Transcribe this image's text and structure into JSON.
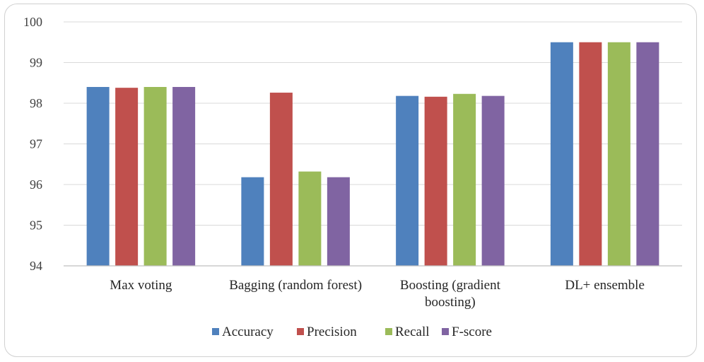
{
  "chart_data": {
    "type": "bar",
    "categories": [
      [
        "Max voting"
      ],
      [
        "Bagging (random forest)"
      ],
      [
        "Boosting (gradient",
        "boosting)"
      ],
      [
        "DL+ ensemble"
      ]
    ],
    "series": [
      {
        "name": "Accuracy",
        "color": "#4f81bd",
        "values": [
          98.4,
          96.18,
          98.18,
          99.5
        ]
      },
      {
        "name": "Precision",
        "color": "#c0504d",
        "values": [
          98.38,
          98.26,
          98.16,
          99.5
        ]
      },
      {
        "name": "Recall",
        "color": "#9bbb59",
        "values": [
          98.4,
          96.32,
          98.23,
          99.5
        ]
      },
      {
        "name": "F-score",
        "color": "#8064a2",
        "values": [
          98.4,
          96.18,
          98.18,
          99.5
        ]
      }
    ],
    "ylim": [
      94,
      100
    ],
    "yticks": [
      94,
      95,
      96,
      97,
      98,
      99,
      100
    ],
    "grid": true,
    "legend": "bottom",
    "title": "",
    "xlabel": "",
    "ylabel": ""
  }
}
